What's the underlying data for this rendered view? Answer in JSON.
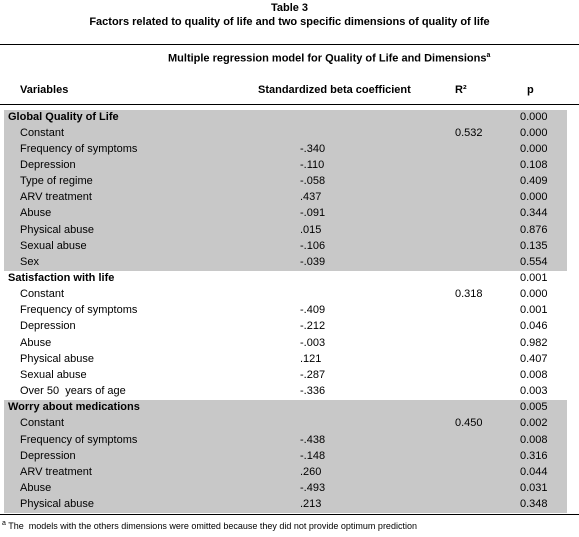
{
  "title": "Table 3",
  "subtitle": "Factors related to quality of life and two specific dimensions of quality of life",
  "model_header": {
    "text": "Multiple regression model for Quality of Life and Dimensions",
    "marker": "a"
  },
  "columns": [
    "Variables",
    "Standardized beta coefficient",
    "R²",
    "p"
  ],
  "sections": [
    {
      "title": "Global Quality of Life",
      "p": "0.000",
      "rows": [
        {
          "variable": "Constant",
          "r2": "0.532",
          "p": "0.000"
        },
        {
          "variable": "Frequency of symptoms",
          "beta": "-.340",
          "p": "0.000"
        },
        {
          "variable": "Depression",
          "beta": "-.110",
          "p": "0.108"
        },
        {
          "variable": "Type of regime",
          "beta": "-.058",
          "p": "0.409"
        },
        {
          "variable": "ARV treatment",
          "beta": ".437",
          "p": "0.000"
        },
        {
          "variable": "Abuse",
          "beta": "-.091",
          "p": "0.344"
        },
        {
          "variable": "Physical abuse",
          "beta": ".015",
          "p": "0.876"
        },
        {
          "variable": "Sexual abuse",
          "beta": "-.106",
          "p": "0.135"
        },
        {
          "variable": "Sex",
          "beta": "-.039",
          "p": "0.554"
        }
      ]
    },
    {
      "title": "Satisfaction with life",
      "p": "0.001",
      "rows": [
        {
          "variable": "Constant",
          "r2": "0.318",
          "p": "0.000"
        },
        {
          "variable": "Frequency of symptoms",
          "beta": "-.409",
          "p": "0.001"
        },
        {
          "variable": "Depression",
          "beta": "-.212",
          "p": "0.046"
        },
        {
          "variable": "Abuse",
          "beta": "-.003",
          "p": "0.982"
        },
        {
          "variable": "Physical abuse",
          "beta": ".121",
          "p": "0.407"
        },
        {
          "variable": "Sexual abuse",
          "beta": "-.287",
          "p": "0.008"
        },
        {
          "variable": "Over 50  years of age",
          "beta": "-.336",
          "p": "0.003"
        }
      ]
    },
    {
      "title": "Worry about medications",
      "p": "0.005",
      "rows": [
        {
          "variable": "Constant",
          "r2": "0.450",
          "p": "0.002"
        },
        {
          "variable": "Frequency of symptoms",
          "beta": "-.438",
          "p": "0.008"
        },
        {
          "variable": "Depression",
          "beta": "-.148",
          "p": "0.316"
        },
        {
          "variable": "ARV treatment",
          "beta": ".260",
          "p": "0.044"
        },
        {
          "variable": "Abuse",
          "beta": "-.493",
          "p": "0.031"
        },
        {
          "variable": "Physical abuse",
          "beta": ".213",
          "p": "0.348"
        }
      ]
    }
  ],
  "footnote": {
    "marker": "a",
    "text": " The  models with the others dimensions were omitted because they did not provide optimum prediction"
  }
}
